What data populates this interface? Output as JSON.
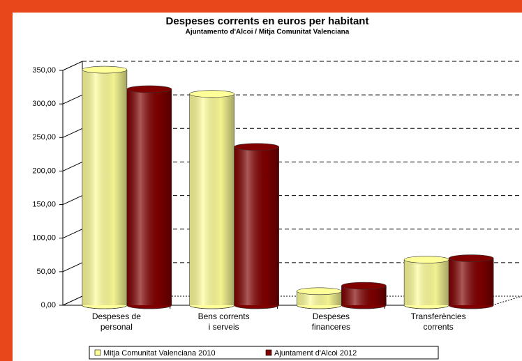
{
  "chart_data": {
    "type": "bar3d",
    "title": "Despeses corrents en euros per habitant",
    "subtitle": "Ajuntamento d'Alcoi / Mitja Comunitat Valenciana",
    "categories": [
      "Despeses de\npersonal",
      "Bens corrents\ni serveis",
      "Despeses\nfinanceres",
      "Transferències\ncorrents"
    ],
    "series": [
      {
        "name": "Mitja Comunitat Valenciana 2010",
        "color": "#ffff99",
        "values": [
          351,
          315,
          21,
          68
        ]
      },
      {
        "name": "Ajuntament d'Alcoi 2012",
        "color": "#800000",
        "values": [
          322,
          236,
          29,
          70
        ]
      }
    ],
    "ylim": [
      0,
      350
    ],
    "yticks": [
      {
        "value": 0,
        "label": "0,00"
      },
      {
        "value": 50,
        "label": "50,00"
      },
      {
        "value": 100,
        "label": "100,00"
      },
      {
        "value": 150,
        "label": "150,00"
      },
      {
        "value": 200,
        "label": "200,00"
      },
      {
        "value": 250,
        "label": "250,00"
      },
      {
        "value": 300,
        "label": "300,00"
      },
      {
        "value": 350,
        "label": "350,00"
      }
    ],
    "grid": true,
    "legend": "bottom"
  }
}
